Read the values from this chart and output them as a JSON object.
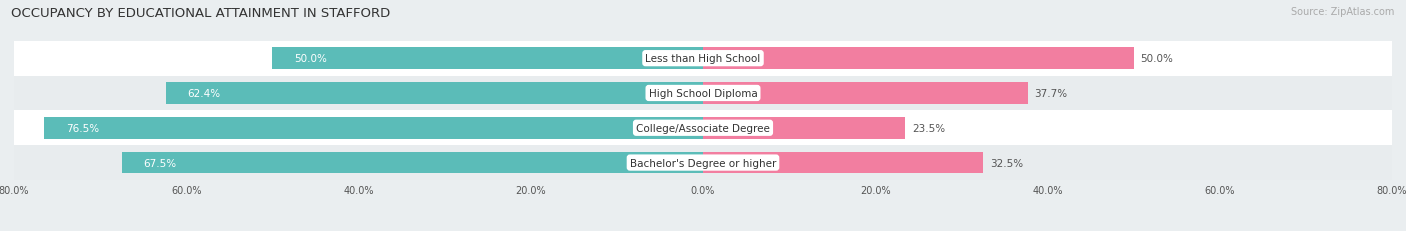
{
  "title": "OCCUPANCY BY EDUCATIONAL ATTAINMENT IN STAFFORD",
  "source": "Source: ZipAtlas.com",
  "categories": [
    "Less than High School",
    "High School Diploma",
    "College/Associate Degree",
    "Bachelor's Degree or higher"
  ],
  "owner_values": [
    50.0,
    62.4,
    76.5,
    67.5
  ],
  "renter_values": [
    50.0,
    37.7,
    23.5,
    32.5
  ],
  "owner_color": "#5BBCB8",
  "renter_color": "#F27EA0",
  "xlim": 80.0,
  "bar_height": 0.62,
  "background_color": "#eaeef0",
  "title_fontsize": 9.5,
  "source_fontsize": 7,
  "value_fontsize": 7.5,
  "cat_fontsize": 7.5,
  "axis_tick_fontsize": 7,
  "legend_fontsize": 7.5,
  "row_colors": [
    "#ffffff",
    "#e8ecee"
  ]
}
